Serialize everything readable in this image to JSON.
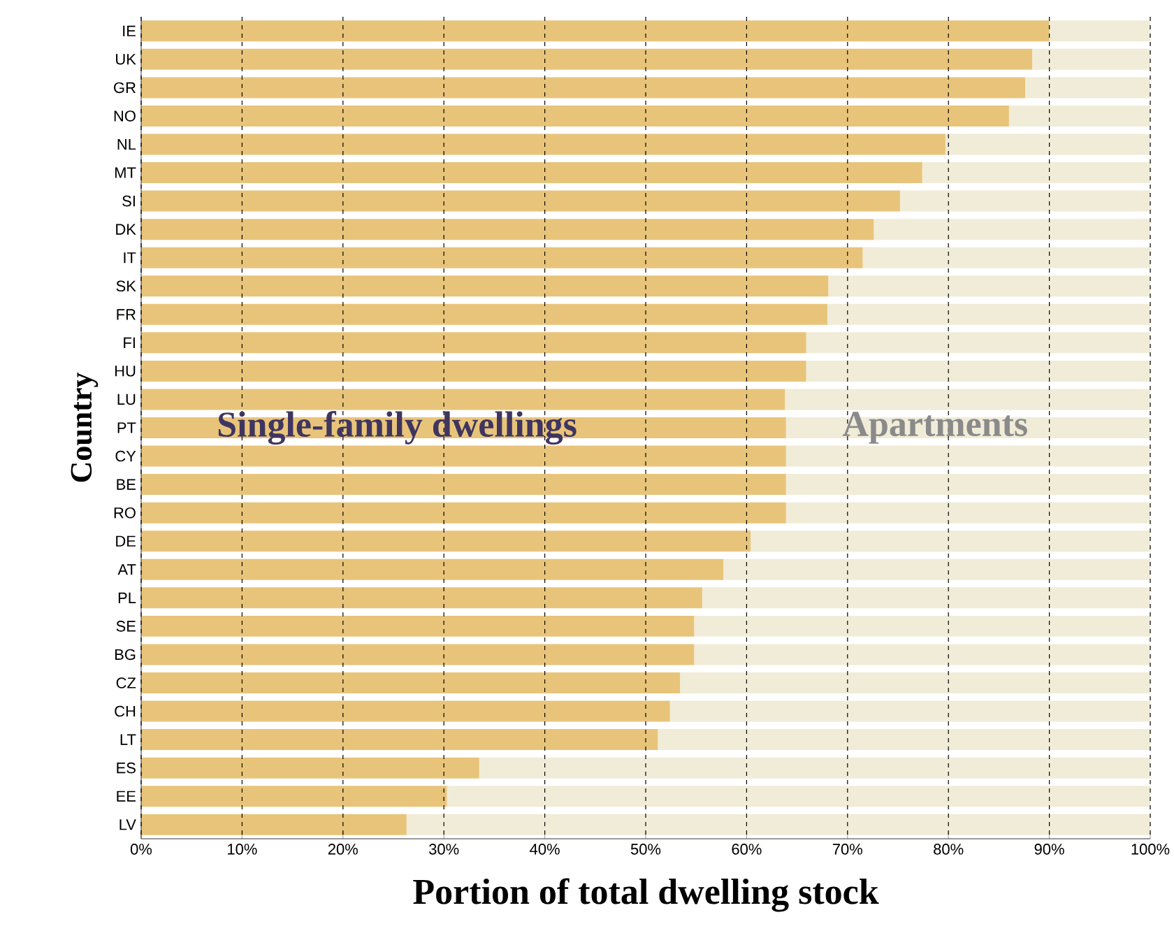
{
  "chart_data": {
    "type": "bar",
    "orientation": "horizontal",
    "stacked": true,
    "xlabel": "Portion of total dwelling stock",
    "ylabel": "Country",
    "categories": [
      "IE",
      "UK",
      "GR",
      "NO",
      "NL",
      "MT",
      "SI",
      "DK",
      "IT",
      "SK",
      "FR",
      "FI",
      "HU",
      "LU",
      "PT",
      "CY",
      "BE",
      "RO",
      "DE",
      "AT",
      "PL",
      "SE",
      "BG",
      "CZ",
      "CH",
      "LT",
      "ES",
      "EE",
      "LV"
    ],
    "series": [
      {
        "name": "Single-family dwellings",
        "color": "#e8c47a",
        "values": [
          90,
          88.3,
          87.6,
          86,
          79.7,
          77.4,
          75.2,
          72.6,
          71.5,
          68.1,
          68,
          65.9,
          65.9,
          63.8,
          63.9,
          63.9,
          63.9,
          63.9,
          60.4,
          57.7,
          55.6,
          54.8,
          54.8,
          53.4,
          52.4,
          51.2,
          33.5,
          30.3,
          26.3
        ]
      },
      {
        "name": "Apartments",
        "color": "#f0ecd8",
        "values": [
          10,
          11.7,
          12.4,
          14,
          20.3,
          22.6,
          24.8,
          27.4,
          28.5,
          31.9,
          32,
          34.1,
          34.1,
          36.2,
          36.1,
          36.1,
          36.1,
          36.1,
          39.6,
          42.3,
          44.4,
          45.2,
          45.2,
          46.6,
          47.6,
          48.8,
          66.5,
          69.7,
          73.7
        ]
      }
    ],
    "xlim": [
      0,
      100
    ],
    "xticks": [
      {
        "value": 0,
        "label": "0%"
      },
      {
        "value": 10,
        "label": "10%"
      },
      {
        "value": 20,
        "label": "20%"
      },
      {
        "value": 30,
        "label": "30%"
      },
      {
        "value": 40,
        "label": "40%"
      },
      {
        "value": 50,
        "label": "50%"
      },
      {
        "value": 60,
        "label": "60%"
      },
      {
        "value": 70,
        "label": "70%"
      },
      {
        "value": 80,
        "label": "80%"
      },
      {
        "value": 90,
        "label": "90%"
      },
      {
        "value": 100,
        "label": "100%"
      }
    ],
    "grid": "x"
  }
}
